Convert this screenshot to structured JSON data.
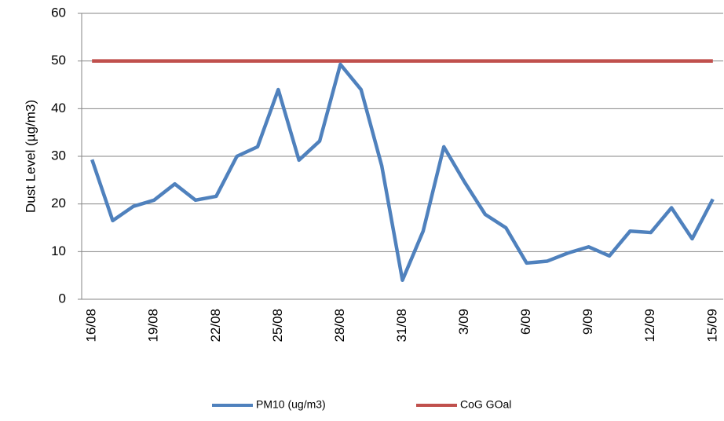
{
  "chart_data": {
    "type": "line",
    "y_label": "Dust Level (µg/m3)",
    "categories": [
      "16/08",
      null,
      null,
      "19/08",
      null,
      null,
      "22/08",
      null,
      null,
      "25/08",
      null,
      null,
      "28/08",
      null,
      null,
      "31/08",
      null,
      null,
      "3/09",
      null,
      null,
      "6/09",
      null,
      null,
      "9/09",
      null,
      null,
      "12/09",
      null,
      null,
      "15/09"
    ],
    "series": [
      {
        "name": "PM10 (ug/m3)",
        "color": "#4f81bd",
        "values": [
          29.3,
          16.5,
          19.5,
          20.8,
          24.2,
          20.8,
          21.6,
          30,
          32,
          44,
          29.2,
          33.2,
          49.3,
          44,
          28,
          4,
          14.3,
          32,
          24.6,
          17.8,
          15,
          7.6,
          8,
          9.7,
          11,
          9.1,
          14.3,
          14,
          19.2,
          12.7,
          21
        ]
      },
      {
        "name": "CoG GOal",
        "color": "#c0504d",
        "values": [
          50,
          50,
          50,
          50,
          50,
          50,
          50,
          50,
          50,
          50,
          50,
          50,
          50,
          50,
          50,
          50,
          50,
          50,
          50,
          50,
          50,
          50,
          50,
          50,
          50,
          50,
          50,
          50,
          50,
          50,
          50
        ]
      }
    ],
    "ylim": [
      0,
      60
    ],
    "yticks": [
      0,
      10,
      20,
      30,
      40,
      50,
      60
    ],
    "grid": true,
    "legend": "bottom"
  }
}
